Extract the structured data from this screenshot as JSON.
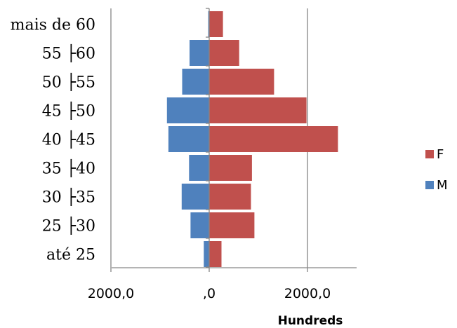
{
  "chart_data": {
    "type": "bar",
    "orientation": "horizontal",
    "categories": [
      "até 25",
      "25 ├30",
      "30 ├35",
      "35 ├40",
      "40 ├45",
      "45 ├50",
      "50 ├55",
      "55 ├60",
      "mais de 60"
    ],
    "series": [
      {
        "name": "F",
        "color": "#c0504d",
        "values": [
          25,
          92,
          85,
          87,
          262,
          198,
          132,
          61,
          28
        ]
      },
      {
        "name": "M",
        "color": "#4f81bd",
        "values": [
          -11,
          -38,
          -56,
          -41,
          -83,
          -86,
          -55,
          -40,
          -2
        ]
      }
    ],
    "xlim": [
      -200,
      300
    ],
    "x_ticks": [
      -200,
      0,
      200
    ],
    "x_tick_labels": [
      "2000,0",
      ",0",
      "2000,0"
    ],
    "x_unit_label": "Hundreds",
    "grid": "vertical",
    "legend": "right"
  }
}
